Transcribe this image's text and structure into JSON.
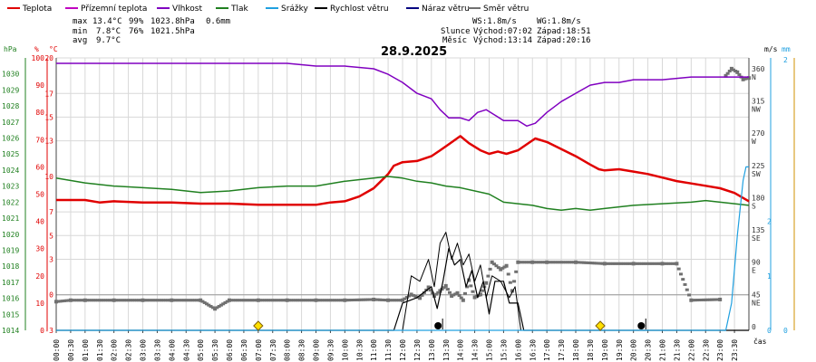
{
  "legend": [
    {
      "label": "Teplota",
      "color": "#e00000"
    },
    {
      "label": "Přízemní teplota",
      "color": "#c000c0"
    },
    {
      "label": "Vlhkost",
      "color": "#8000c0"
    },
    {
      "label": "Tlak",
      "color": "#208020"
    },
    {
      "label": "Srážky",
      "color": "#20a0e0"
    },
    {
      "label": "Rychlost větru",
      "color": "#000000"
    },
    {
      "label": "Náraz větru",
      "color": "#000080"
    },
    {
      "label": "Směr větru",
      "color": "#707070"
    }
  ],
  "stats": {
    "max": {
      "label": "max",
      "temp": "13.4°C",
      "hum": "99%",
      "press": "1023.8hPa",
      "rain": "0.6mm"
    },
    "min": {
      "label": "min",
      "temp": "7.8°C",
      "hum": "76%",
      "press": "1021.5hPa"
    },
    "avg": {
      "label": "avg",
      "temp": "9.7°C"
    }
  },
  "wind_info": {
    "ws": "WS:1.8m/s",
    "wg": "WG:1.8m/s"
  },
  "astro": {
    "sun": {
      "label": "Slunce",
      "rise": "Východ:07:02",
      "set": "Západ:18:51"
    },
    "moon": {
      "label": "Měsíc",
      "rise": "Východ:13:14",
      "set": "Západ:20:16"
    }
  },
  "colors": {
    "temp": "#e00000",
    "hum": "#8000c0",
    "press": "#208020",
    "rain": "#20a0e0",
    "wind": "#000000",
    "dir": "#707070",
    "grid": "#d8d8d8",
    "sun": "#ffe000",
    "axis": "#444444"
  },
  "chart_data": {
    "type": "line",
    "title": "28.9.2025",
    "xlabel": "čas",
    "x_ticks": [
      "00:00",
      "00:30",
      "01:00",
      "01:30",
      "02:00",
      "02:30",
      "03:00",
      "03:30",
      "04:00",
      "04:30",
      "05:00",
      "05:30",
      "06:00",
      "06:30",
      "07:00",
      "07:30",
      "08:00",
      "08:30",
      "09:00",
      "09:30",
      "10:00",
      "10:30",
      "11:00",
      "11:30",
      "12:00",
      "12:30",
      "13:00",
      "13:30",
      "14:00",
      "14:30",
      "15:00",
      "15:30",
      "16:00",
      "16:30",
      "17:00",
      "17:30",
      "18:00",
      "18:30",
      "19:00",
      "19:30",
      "20:00",
      "20:30",
      "21:00",
      "21:30",
      "22:00",
      "22:30",
      "23:00",
      "23:30"
    ],
    "xlim_hours": [
      0,
      24
    ],
    "axes": {
      "press": {
        "label": "hPa",
        "lim": [
          1014,
          1031
        ],
        "ticks": [
          1014,
          1015,
          1016,
          1017,
          1018,
          1019,
          1020,
          1021,
          1022,
          1023,
          1024,
          1025,
          1026,
          1027,
          1028,
          1029,
          1030
        ],
        "color": "#208020"
      },
      "hum": {
        "label": "%",
        "lim": [
          0,
          100
        ],
        "ticks": [
          0,
          10,
          20,
          30,
          40,
          50,
          60,
          70,
          80,
          90,
          100
        ],
        "color": "#e00000"
      },
      "temp": {
        "label": "°C",
        "lim": [
          -3,
          20
        ],
        "ticks": [
          -3,
          0,
          3,
          5,
          7,
          10,
          13,
          15,
          17,
          20
        ],
        "color": "#e00000"
      },
      "dir": {
        "lim": [
          0,
          380
        ],
        "ticks": [
          {
            "v": 0,
            "l": "0"
          },
          {
            "v": 45,
            "l": "45",
            "d": "NE"
          },
          {
            "v": 90,
            "l": "90",
            "d": "E"
          },
          {
            "v": 135,
            "l": "135",
            "d": "SE"
          },
          {
            "v": 180,
            "l": "180",
            "d": "S"
          },
          {
            "v": 225,
            "l": "225",
            "d": "SW"
          },
          {
            "v": 270,
            "l": "270",
            "d": "W"
          },
          {
            "v": 315,
            "l": "315",
            "d": "NW"
          },
          {
            "v": 360,
            "l": "360",
            "d": "N"
          }
        ]
      },
      "wind": {
        "label": "m/s",
        "lim": [
          0,
          5
        ],
        "ticks": [
          0,
          1,
          2
        ]
      },
      "rain": {
        "label": "mm",
        "lim": [
          0,
          1
        ],
        "ticks": [
          0,
          2
        ]
      }
    },
    "series": [
      {
        "name": "Teplota",
        "axis": "temp",
        "color": "#e00000",
        "width": 2.5,
        "points": [
          [
            0,
            8.0
          ],
          [
            1,
            8.0
          ],
          [
            1.5,
            7.8
          ],
          [
            2,
            7.9
          ],
          [
            3,
            7.8
          ],
          [
            4,
            7.8
          ],
          [
            5,
            7.7
          ],
          [
            6,
            7.7
          ],
          [
            7,
            7.6
          ],
          [
            8,
            7.6
          ],
          [
            9,
            7.6
          ],
          [
            9.5,
            7.8
          ],
          [
            10,
            7.9
          ],
          [
            10.5,
            8.3
          ],
          [
            11,
            9.0
          ],
          [
            11.5,
            10.2
          ],
          [
            11.7,
            10.9
          ],
          [
            12,
            11.2
          ],
          [
            12.5,
            11.3
          ],
          [
            13,
            11.7
          ],
          [
            13.3,
            12.2
          ],
          [
            13.6,
            12.7
          ],
          [
            14,
            13.4
          ],
          [
            14.3,
            12.8
          ],
          [
            14.7,
            12.2
          ],
          [
            15,
            11.9
          ],
          [
            15.3,
            12.1
          ],
          [
            15.6,
            11.9
          ],
          [
            16,
            12.2
          ],
          [
            16.3,
            12.7
          ],
          [
            16.6,
            13.2
          ],
          [
            17,
            12.9
          ],
          [
            17.5,
            12.3
          ],
          [
            18,
            11.7
          ],
          [
            18.5,
            11.0
          ],
          [
            18.8,
            10.6
          ],
          [
            19,
            10.5
          ],
          [
            19.5,
            10.6
          ],
          [
            20,
            10.4
          ],
          [
            20.5,
            10.2
          ],
          [
            21,
            9.9
          ],
          [
            21.5,
            9.6
          ],
          [
            22,
            9.4
          ],
          [
            22.5,
            9.2
          ],
          [
            23,
            9.0
          ],
          [
            23.5,
            8.6
          ],
          [
            24,
            7.9
          ]
        ]
      },
      {
        "name": "Vlhkost",
        "axis": "hum",
        "color": "#8000c0",
        "width": 1.5,
        "points": [
          [
            0,
            98
          ],
          [
            1,
            98
          ],
          [
            2,
            98
          ],
          [
            3,
            98
          ],
          [
            4,
            98
          ],
          [
            5,
            98
          ],
          [
            6,
            98
          ],
          [
            7,
            98
          ],
          [
            8,
            98
          ],
          [
            9,
            97
          ],
          [
            10,
            97
          ],
          [
            11,
            96
          ],
          [
            11.5,
            94
          ],
          [
            12,
            91
          ],
          [
            12.5,
            87
          ],
          [
            13,
            85
          ],
          [
            13.3,
            81
          ],
          [
            13.6,
            78
          ],
          [
            14,
            78
          ],
          [
            14.3,
            77
          ],
          [
            14.6,
            80
          ],
          [
            14.9,
            81
          ],
          [
            15.2,
            79
          ],
          [
            15.5,
            77
          ],
          [
            16,
            77
          ],
          [
            16.3,
            75
          ],
          [
            16.6,
            76
          ],
          [
            17,
            80
          ],
          [
            17.5,
            84
          ],
          [
            18,
            87
          ],
          [
            18.5,
            90
          ],
          [
            19,
            91
          ],
          [
            19.5,
            91
          ],
          [
            20,
            92
          ],
          [
            20.5,
            92
          ],
          [
            21,
            92
          ],
          [
            22,
            93
          ],
          [
            22.5,
            93
          ],
          [
            23,
            93
          ],
          [
            23.5,
            93
          ],
          [
            24,
            93
          ]
        ]
      },
      {
        "name": "Tlak",
        "axis": "press",
        "color": "#208020",
        "width": 1.5,
        "points": [
          [
            0,
            1023.5
          ],
          [
            1,
            1023.2
          ],
          [
            2,
            1023.0
          ],
          [
            3,
            1022.9
          ],
          [
            4,
            1022.8
          ],
          [
            5,
            1022.6
          ],
          [
            6,
            1022.7
          ],
          [
            7,
            1022.9
          ],
          [
            8,
            1023.0
          ],
          [
            9,
            1023.0
          ],
          [
            10,
            1023.3
          ],
          [
            11,
            1023.5
          ],
          [
            11.5,
            1023.6
          ],
          [
            12,
            1023.5
          ],
          [
            12.5,
            1023.3
          ],
          [
            13,
            1023.2
          ],
          [
            13.5,
            1023.0
          ],
          [
            14,
            1022.9
          ],
          [
            15,
            1022.5
          ],
          [
            15.5,
            1022.0
          ],
          [
            16,
            1021.9
          ],
          [
            16.5,
            1021.8
          ],
          [
            17,
            1021.6
          ],
          [
            17.5,
            1021.5
          ],
          [
            18,
            1021.6
          ],
          [
            18.5,
            1021.5
          ],
          [
            19,
            1021.6
          ],
          [
            20,
            1021.8
          ],
          [
            21,
            1021.9
          ],
          [
            22,
            1022.0
          ],
          [
            22.5,
            1022.1
          ],
          [
            23,
            1022.0
          ],
          [
            23.5,
            1021.9
          ],
          [
            24,
            1021.8
          ]
        ]
      },
      {
        "name": "Rychlost větru",
        "axis": "wind",
        "color": "#000000",
        "width": 1.2,
        "points": [
          [
            0,
            0
          ],
          [
            11.7,
            0
          ],
          [
            12,
            0.5
          ],
          [
            12.5,
            0.6
          ],
          [
            13,
            0.8
          ],
          [
            13.2,
            0.4
          ],
          [
            13.4,
            0.9
          ],
          [
            13.6,
            1.5
          ],
          [
            13.8,
            1.2
          ],
          [
            14,
            1.3
          ],
          [
            14.2,
            0.8
          ],
          [
            14.4,
            1.1
          ],
          [
            14.6,
            0.6
          ],
          [
            14.8,
            0.9
          ],
          [
            15,
            0.3
          ],
          [
            15.2,
            0.9
          ],
          [
            15.5,
            0.9
          ],
          [
            15.7,
            0.5
          ],
          [
            16,
            0.5
          ],
          [
            16.2,
            0
          ],
          [
            24,
            0
          ]
        ]
      },
      {
        "name": "Náraz větru",
        "axis": "wind",
        "color": "#000000",
        "width": 1.0,
        "points": [
          [
            0,
            0
          ],
          [
            12,
            0
          ],
          [
            12.3,
            1.0
          ],
          [
            12.6,
            0.9
          ],
          [
            12.9,
            1.3
          ],
          [
            13.1,
            0.8
          ],
          [
            13.3,
            1.6
          ],
          [
            13.5,
            1.8
          ],
          [
            13.7,
            1.3
          ],
          [
            13.9,
            1.6
          ],
          [
            14.1,
            1.2
          ],
          [
            14.3,
            1.4
          ],
          [
            14.5,
            0.9
          ],
          [
            14.7,
            1.2
          ],
          [
            14.9,
            0.6
          ],
          [
            15.1,
            1.0
          ],
          [
            15.4,
            0.9
          ],
          [
            15.7,
            0.6
          ],
          [
            15.9,
            0.8
          ],
          [
            16.1,
            0
          ],
          [
            24,
            0
          ]
        ]
      },
      {
        "name": "Srážky",
        "axis": "rain",
        "color": "#20a0e0",
        "width": 1.2,
        "points": [
          [
            0,
            0
          ],
          [
            23.2,
            0
          ],
          [
            23.4,
            0.1
          ],
          [
            23.6,
            0.35
          ],
          [
            23.8,
            0.55
          ],
          [
            23.9,
            0.6
          ],
          [
            24,
            0.6
          ]
        ]
      }
    ],
    "wind_direction": {
      "axis": "dir",
      "color": "#707070",
      "points": [
        [
          0,
          40
        ],
        [
          0.5,
          42
        ],
        [
          1,
          42
        ],
        [
          2,
          42
        ],
        [
          3,
          42
        ],
        [
          4,
          42
        ],
        [
          5,
          42
        ],
        [
          5.5,
          30
        ],
        [
          6,
          42
        ],
        [
          7,
          42
        ],
        [
          8,
          42
        ],
        [
          9,
          42
        ],
        [
          10,
          42
        ],
        [
          11,
          43
        ],
        [
          11.5,
          42
        ],
        [
          12,
          42
        ],
        [
          12.3,
          50
        ],
        [
          12.6,
          45
        ],
        [
          12.9,
          60
        ],
        [
          13.1,
          48
        ],
        [
          13.3,
          55
        ],
        [
          13.5,
          62
        ],
        [
          13.7,
          48
        ],
        [
          13.9,
          52
        ],
        [
          14.1,
          42
        ],
        [
          14.3,
          70
        ],
        [
          14.5,
          46
        ],
        [
          14.7,
          50
        ],
        [
          14.9,
          66
        ],
        [
          15.1,
          95
        ],
        [
          15.4,
          85
        ],
        [
          15.6,
          90
        ],
        [
          15.8,
          55
        ],
        [
          16,
          95
        ],
        [
          16.5,
          95
        ],
        [
          17,
          95
        ],
        [
          18,
          95
        ],
        [
          19,
          93
        ],
        [
          20,
          93
        ],
        [
          21,
          93
        ],
        [
          21.5,
          93
        ],
        [
          22,
          42
        ],
        [
          23,
          43
        ],
        [
          23.2,
          355
        ],
        [
          23.4,
          365
        ],
        [
          23.6,
          360
        ],
        [
          23.8,
          350
        ],
        [
          24,
          352
        ]
      ]
    },
    "annotations": [
      {
        "type": "sun",
        "hour": 7.0
      },
      {
        "type": "sun",
        "hour": 18.85
      },
      {
        "type": "moon",
        "hour": 13.23
      },
      {
        "type": "moon",
        "hour": 20.27
      }
    ]
  }
}
